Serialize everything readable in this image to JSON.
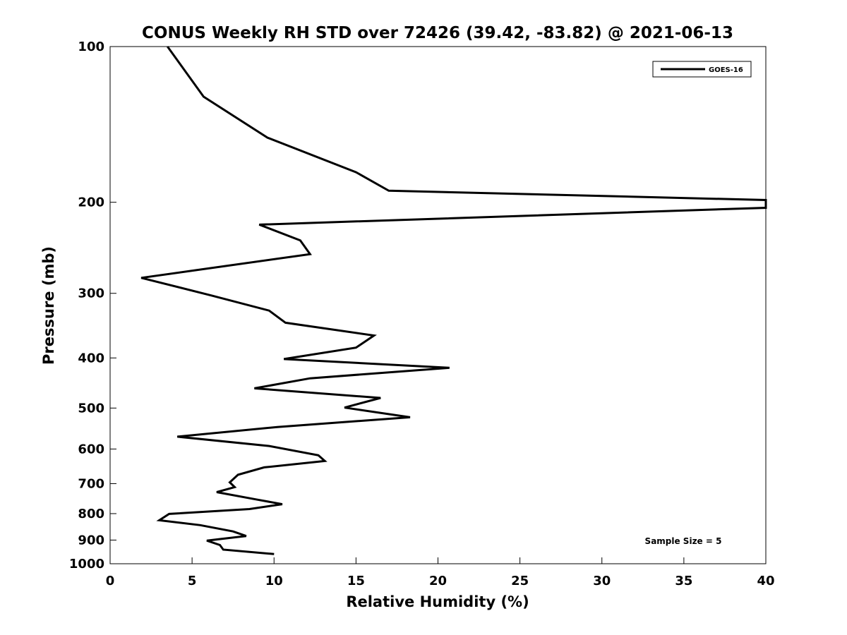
{
  "chart_data": {
    "type": "line",
    "title": "CONUS Weekly RH STD over 72426 (39.42, -83.82) @ 2021-06-13",
    "xlabel": "Relative Humidity (%)",
    "ylabel": "Pressure (mb)",
    "xlim": [
      0,
      40
    ],
    "ylim": [
      100,
      1000
    ],
    "y_scale": "log",
    "y_reversed": true,
    "x_ticks": [
      0,
      5,
      10,
      15,
      20,
      25,
      30,
      35,
      40
    ],
    "y_ticks": [
      100,
      200,
      300,
      400,
      500,
      600,
      700,
      800,
      900,
      1000
    ],
    "grid": false,
    "legend_position": "top-right",
    "series": [
      {
        "name": "GOES-16",
        "color": "#000000",
        "points": [
          [
            3.5,
            100
          ],
          [
            5.7,
            125
          ],
          [
            9.6,
            150
          ],
          [
            15.0,
            175
          ],
          [
            17.0,
            190
          ],
          [
            40.0,
            198
          ],
          [
            40.0,
            205
          ],
          [
            9.1,
            221
          ],
          [
            11.6,
            237
          ],
          [
            12.2,
            252
          ],
          [
            1.9,
            280
          ],
          [
            6.2,
            303
          ],
          [
            9.7,
            324
          ],
          [
            10.7,
            342
          ],
          [
            16.1,
            362
          ],
          [
            15.0,
            382
          ],
          [
            10.6,
            402
          ],
          [
            20.7,
            418
          ],
          [
            12.2,
            438
          ],
          [
            8.8,
            458
          ],
          [
            16.5,
            478
          ],
          [
            14.3,
            499
          ],
          [
            18.3,
            521
          ],
          [
            10.2,
            544
          ],
          [
            4.1,
            568
          ],
          [
            9.7,
            592
          ],
          [
            12.7,
            617
          ],
          [
            13.1,
            633
          ],
          [
            9.4,
            651
          ],
          [
            7.8,
            673
          ],
          [
            7.3,
            696
          ],
          [
            7.6,
            711
          ],
          [
            6.5,
            727
          ],
          [
            8.9,
            751
          ],
          [
            10.5,
            767
          ],
          [
            8.5,
            784
          ],
          [
            3.6,
            801
          ],
          [
            3.0,
            824
          ],
          [
            5.5,
            842
          ],
          [
            7.5,
            866
          ],
          [
            8.3,
            884
          ],
          [
            5.9,
            902
          ],
          [
            6.7,
            920
          ],
          [
            6.9,
            939
          ],
          [
            10.0,
            958
          ]
        ]
      }
    ],
    "annotations": [
      "Sample Size = 5"
    ]
  }
}
